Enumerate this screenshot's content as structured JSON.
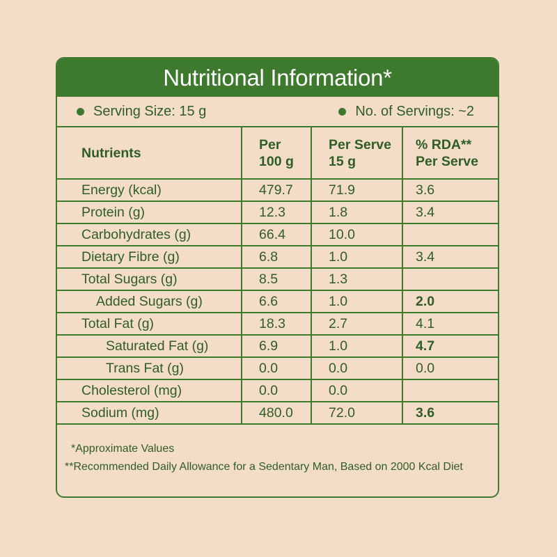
{
  "title": "Nutritional Information*",
  "serving": {
    "size_label": "Serving Size: 15 g",
    "count_label": "No. of Servings: ~2"
  },
  "columns": {
    "nutrients": "Nutrients",
    "per100_line1": "Per",
    "per100_line2": "100 g",
    "perserve_line1": "Per Serve",
    "perserve_line2": "15 g",
    "rda_line1": "% RDA**",
    "rda_line2": "Per Serve"
  },
  "rows": [
    {
      "name": "Energy (kcal)",
      "per100": "479.7",
      "perserve": "71.9",
      "rda": "3.6"
    },
    {
      "name": "Protein (g)",
      "per100": "12.3",
      "perserve": "1.8",
      "rda": "3.4"
    },
    {
      "name": "Carbohydrates (g)",
      "per100": "66.4",
      "perserve": "10.0",
      "rda": ""
    },
    {
      "name": "Dietary Fibre (g)",
      "per100": "6.8",
      "perserve": "1.0",
      "rda": "3.4"
    },
    {
      "name": "Total Sugars (g)",
      "per100": "8.5",
      "perserve": "1.3",
      "rda": ""
    },
    {
      "name": "Added Sugars (g)",
      "per100": "6.6",
      "perserve": "1.0",
      "rda": "2.0"
    },
    {
      "name": "Total Fat (g)",
      "per100": "18.3",
      "perserve": "2.7",
      "rda": "4.1"
    },
    {
      "name": "Saturated Fat (g)",
      "per100": "6.9",
      "perserve": "1.0",
      "rda": "4.7"
    },
    {
      "name": "Trans Fat (g)",
      "per100": "0.0",
      "perserve": "0.0",
      "rda": "0.0"
    },
    {
      "name": "Cholesterol (mg)",
      "per100": "0.0",
      "perserve": "0.0",
      "rda": ""
    },
    {
      "name": "Sodium (mg)",
      "per100": "480.0",
      "perserve": "72.0",
      "rda": "3.6"
    }
  ],
  "notes": {
    "approx": "*Approximate Values",
    "rda_note": "**Recommended Daily Allowance for a Sedentary Man, Based on 2000 Kcal Diet"
  },
  "colors": {
    "background": "#f3dcc8",
    "accent_green": "#3d7a2e",
    "text_green": "#2f5e25"
  }
}
